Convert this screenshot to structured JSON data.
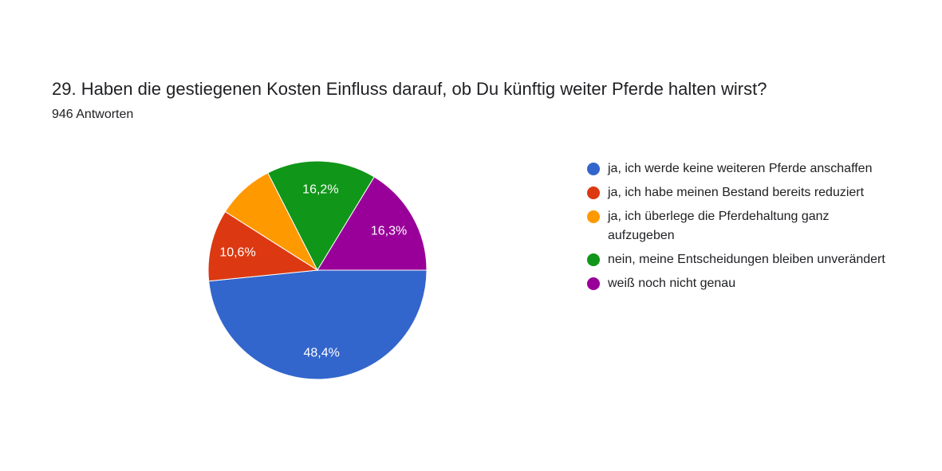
{
  "header": {
    "title": "29. Haben die gestiegenen Kosten Einfluss darauf, ob Du künftig weiter Pferde halten wirst?",
    "responses": "946 Antworten"
  },
  "chart_data": {
    "type": "pie",
    "title": "29. Haben die gestiegenen Kosten Einfluss darauf, ob Du künftig weiter Pferde halten wirst?",
    "subtitle": "946 Antworten",
    "legend_position": "right",
    "slices": [
      {
        "label": "ja, ich werde keine weiteren Pferde anschaffen",
        "value": 48.4,
        "value_label": "48,4%",
        "color": "#3366cc"
      },
      {
        "label": "ja, ich habe meinen Bestand bereits reduziert",
        "value": 10.6,
        "value_label": "10,6%",
        "color": "#dc3912"
      },
      {
        "label": "ja, ich überlege die Pferdehaltung ganz aufzugeben",
        "value": 8.5,
        "value_label": "",
        "color": "#ff9900"
      },
      {
        "label": "nein, meine Entscheidungen bleiben unverändert",
        "value": 16.2,
        "value_label": "16,2%",
        "color": "#109618"
      },
      {
        "label": "weiß noch nicht genau",
        "value": 16.3,
        "value_label": "16,3%",
        "color": "#990099"
      }
    ]
  }
}
